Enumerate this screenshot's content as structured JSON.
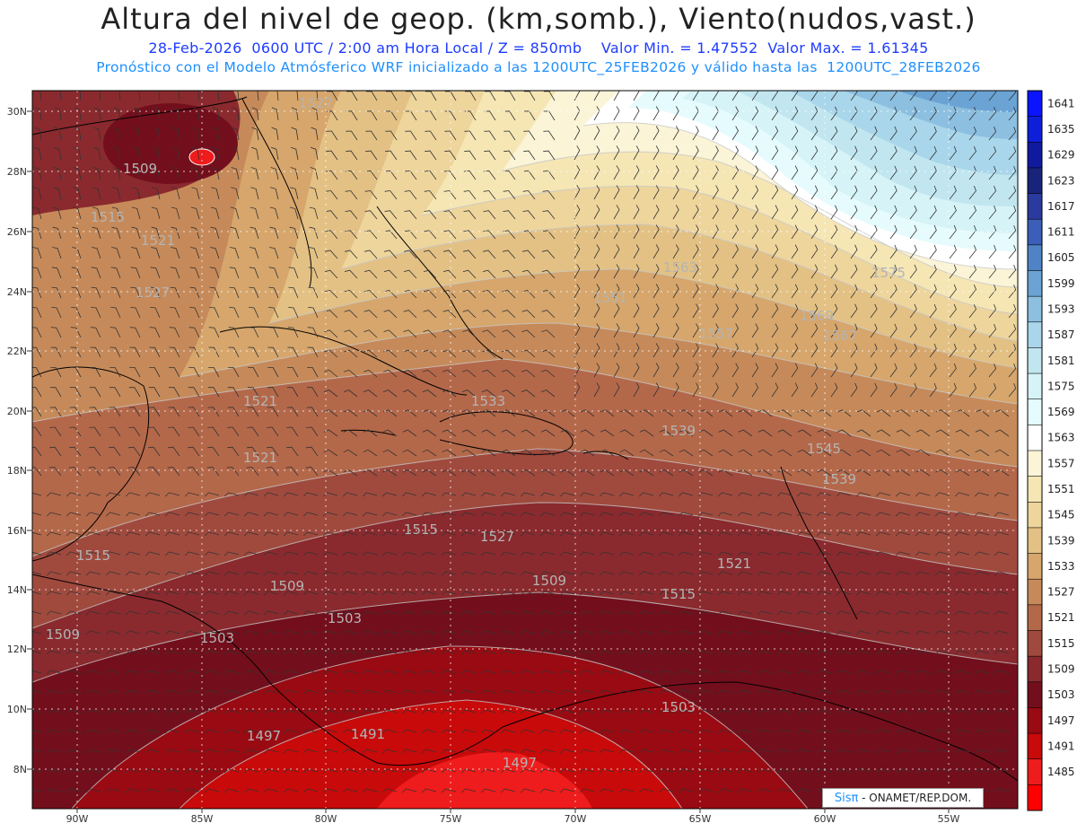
{
  "header": {
    "title": "Altura del nivel de geop. (km,somb.), Viento(nudos,vast.)",
    "subtitle_line1": "28-Feb-2026  0600 UTC / 2:00 am Hora Local / Z = 850mb    Valor Min. = 1.47552  Valor Max. = 1.61345",
    "subtitle_line2": "Pronóstico con el Modelo Atmósferico WRF inicializado a las 1200UTC_25FEB2026 y válido hasta las  1200UTC_28FEB2026"
  },
  "map": {
    "lat_labels": [
      "30N",
      "28N",
      "26N",
      "24N",
      "22N",
      "20N",
      "18N",
      "16N",
      "14N",
      "12N",
      "10N",
      "8N"
    ],
    "lon_labels": [
      "90W",
      "85W",
      "80W",
      "75W",
      "70W",
      "65W",
      "60W",
      "55W"
    ],
    "contour_labels": [
      "1527",
      "1509",
      "1515",
      "1521",
      "1527",
      "1563",
      "1575",
      "1551",
      "1569",
      "1557",
      "1567",
      "1533",
      "1521",
      "1521",
      "1539",
      "1545",
      "1539",
      "1527",
      "1515",
      "1509",
      "1509",
      "1515",
      "1521",
      "1515",
      "1503",
      "1503",
      "1497",
      "1491",
      "1497",
      "1509",
      "1503"
    ]
  },
  "colorbar": {
    "levels": [
      "1641",
      "1635",
      "1629",
      "1623",
      "1617",
      "1611",
      "1605",
      "1599",
      "1593",
      "1587",
      "1581",
      "1575",
      "1569",
      "1563",
      "1557",
      "1551",
      "1545",
      "1539",
      "1533",
      "1527",
      "1521",
      "1515",
      "1509",
      "1503",
      "1497",
      "1491",
      "1485"
    ],
    "colors": [
      "#0a14ff",
      "#0d1fd8",
      "#101a9e",
      "#18237a",
      "#2b3a9e",
      "#3b5fb8",
      "#4f83c6",
      "#6aa3d4",
      "#8cbfe0",
      "#a9d6ea",
      "#c1e6f0",
      "#d6f3f7",
      "#e6fbfd",
      "#ffffff",
      "#fbf4d7",
      "#f5e6b4",
      "#eed59c",
      "#e3c184",
      "#d6a66c",
      "#c68a5a",
      "#b4684a",
      "#a04a3e",
      "#8a2a2e",
      "#730f1c",
      "#990a12",
      "#c80a0a",
      "#ee1c1c",
      "#ff0000"
    ]
  },
  "credit": {
    "brand": "Sisπ",
    "text": " - ONAMET/REP.DOM."
  }
}
